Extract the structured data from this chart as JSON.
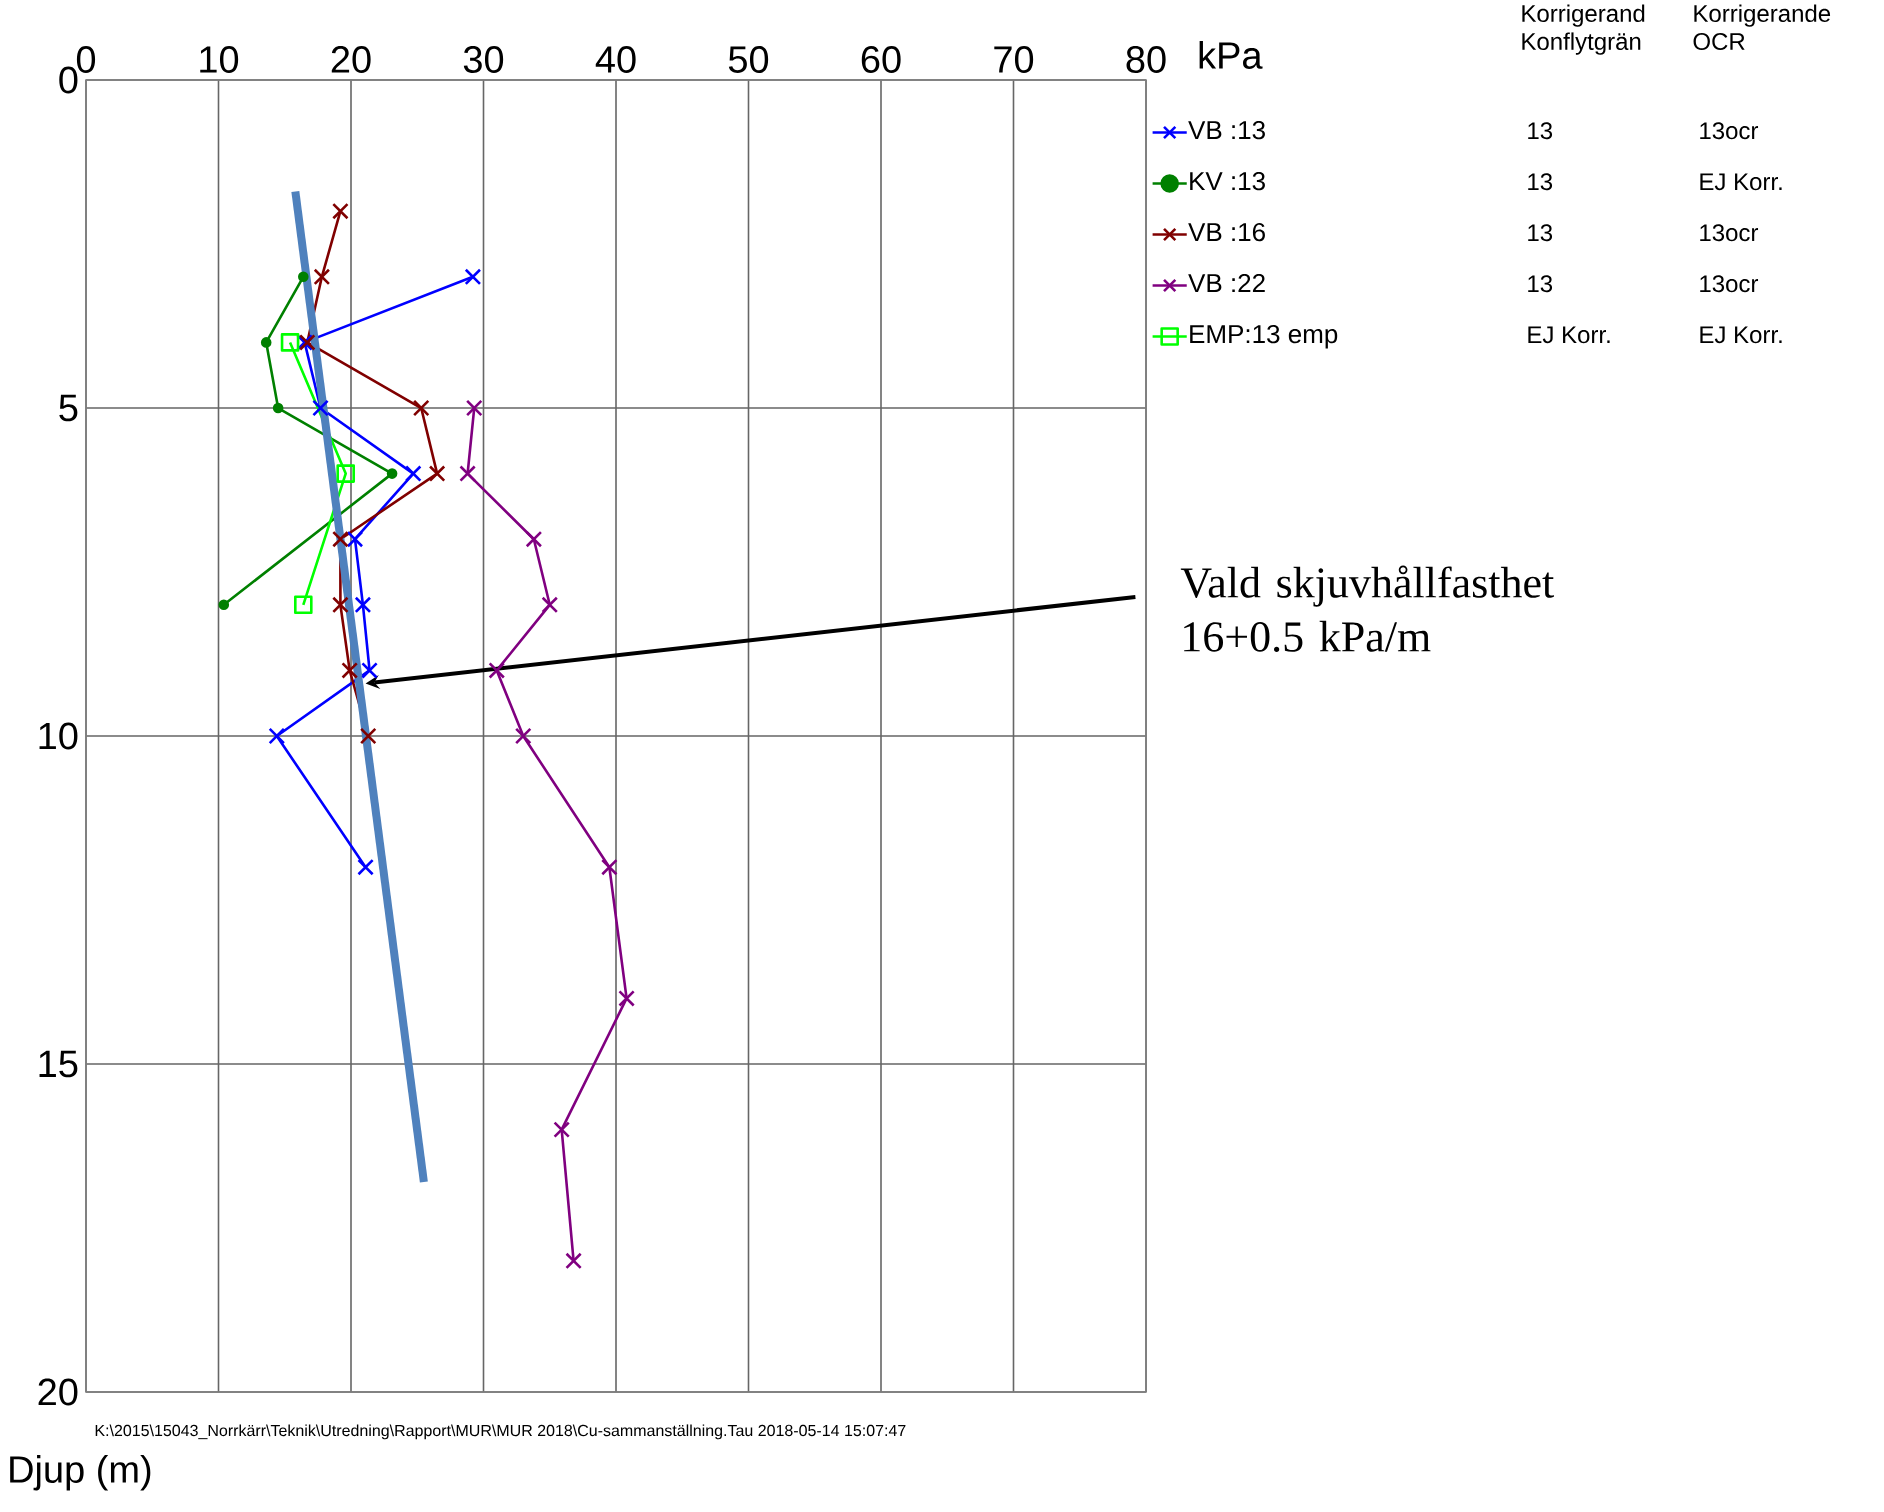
{
  "chart_data": {
    "type": "line",
    "xlabel": "kPa",
    "ylabel": "Djup (m)",
    "xlim": [
      0,
      80
    ],
    "xticks": [
      0,
      10,
      20,
      30,
      40,
      50,
      60,
      70,
      80
    ],
    "ylim": [
      20,
      0
    ],
    "yticks": [
      0,
      5,
      10,
      15,
      20
    ],
    "grid": true,
    "legend": "right",
    "series": [
      {
        "name": "VB :13",
        "color": "#0000ff",
        "marker": "cross",
        "x": [
          29.2,
          16.5,
          17.7,
          24.7,
          20.3,
          20.9,
          21.4,
          14.4,
          21.1
        ],
        "values": [
          3,
          4,
          5,
          6,
          7,
          8,
          9,
          10,
          12
        ]
      },
      {
        "name": "KV :13",
        "color": "#008000",
        "marker": "circle",
        "x": [
          16.4,
          13.6,
          14.5,
          23.1,
          10.4
        ],
        "values": [
          3,
          4,
          5,
          6,
          8
        ]
      },
      {
        "name": "VB :16",
        "color": "#800000",
        "marker": "cross",
        "x": [
          19.2,
          17.8,
          16.7,
          25.3,
          26.5,
          19.2,
          19.2,
          19.9,
          21.3
        ],
        "values": [
          2,
          3,
          4,
          5,
          6,
          7,
          8,
          9,
          10
        ]
      },
      {
        "name": "VB :22",
        "color": "#800080",
        "marker": "cross",
        "x": [
          29.3,
          28.8,
          33.8,
          35.0,
          31.0,
          33.0,
          39.5,
          40.8,
          35.9,
          36.8
        ],
        "values": [
          5,
          6,
          7,
          8,
          9,
          10,
          12,
          14,
          16,
          18
        ]
      },
      {
        "name": "EMP:13 emp",
        "color": "#00ff00",
        "marker": "square",
        "x": [
          15.4,
          19.6,
          16.4
        ],
        "values": [
          4,
          6,
          8
        ]
      },
      {
        "color": "#4f81bd",
        "marker": "none",
        "x": [
          15.8,
          25.5
        ],
        "values": [
          1.7,
          16.8
        ]
      }
    ],
    "annotations": [
      "Korrigerand Konflytgrän",
      "Korrigerande OCR",
      "13",
      "13ocr",
      "13",
      "EJ Korr.",
      "13",
      "13ocr",
      "13",
      "13ocr",
      "EJ Korr.",
      "EJ Korr.",
      "K:\\2015\\15043_Norrkärr\\Teknik\\Utredning\\Rapport\\MUR\\MUR 2018\\Cu-sammanställning.Tau  2018-05-14 15:07:47",
      {
        "text": "Vald skjuvhållfasthet 16+0.5 kPa/m",
        "x": 21.1,
        "y": 9.2
      }
    ]
  }
}
